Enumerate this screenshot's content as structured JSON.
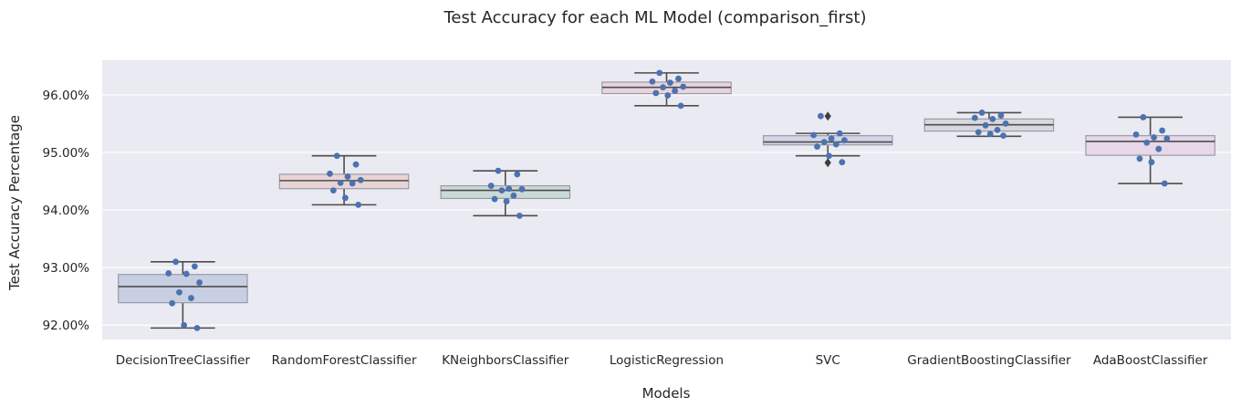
{
  "chart_data": {
    "type": "box",
    "title": "Test Accuracy for each ML Model (comparison_first)",
    "xlabel": "Models",
    "ylabel": "Test Accuracy Percentage",
    "ylim": [
      91.75,
      96.6
    ],
    "yticks": [
      92.0,
      93.0,
      94.0,
      95.0,
      96.0
    ],
    "ytick_labels": [
      "92.00%",
      "93.00%",
      "94.00%",
      "95.00%",
      "96.00%"
    ],
    "grid": true,
    "categories": [
      "DecisionTreeClassifier",
      "RandomForestClassifier",
      "KNeighborsClassifier",
      "LogisticRegression",
      "SVC",
      "GradientBoostingClassifier",
      "AdaBoostClassifier"
    ],
    "colors": {
      "background": "#eaeaf2",
      "grid": "#ffffff",
      "points": "#4c72b0",
      "box_edge": "#4d4d4d",
      "boxes": [
        "#c6cde0",
        "#e8d3d3",
        "#c9d9d4",
        "#e8d3dc",
        "#d2d3e6",
        "#d6d6dc",
        "#e6d6e8"
      ]
    },
    "boxes": [
      {
        "q1": 92.39,
        "median": 92.67,
        "q3": 92.88,
        "whisker_low": 91.95,
        "whisker_high": 93.1,
        "outliers": []
      },
      {
        "q1": 94.37,
        "median": 94.51,
        "q3": 94.62,
        "whisker_low": 94.09,
        "whisker_high": 94.94,
        "outliers": []
      },
      {
        "q1": 94.2,
        "median": 94.34,
        "q3": 94.42,
        "whisker_low": 93.9,
        "whisker_high": 94.68,
        "outliers": []
      },
      {
        "q1": 96.02,
        "median": 96.13,
        "q3": 96.22,
        "whisker_low": 95.81,
        "whisker_high": 96.38,
        "outliers": []
      },
      {
        "q1": 95.13,
        "median": 95.18,
        "q3": 95.29,
        "whisker_low": 94.94,
        "whisker_high": 95.33,
        "outliers": [
          95.63,
          94.82
        ]
      },
      {
        "q1": 95.37,
        "median": 95.48,
        "q3": 95.58,
        "whisker_low": 95.28,
        "whisker_high": 95.69,
        "outliers": []
      },
      {
        "q1": 94.95,
        "median": 95.19,
        "q3": 95.29,
        "whisker_low": 94.46,
        "whisker_high": 95.61,
        "outliers": []
      }
    ],
    "points": [
      [
        93.1,
        93.02,
        92.9,
        92.89,
        92.74,
        92.57,
        92.47,
        92.38,
        92.0,
        91.95
      ],
      [
        94.94,
        94.79,
        94.63,
        94.58,
        94.52,
        94.47,
        94.46,
        94.34,
        94.21,
        94.09
      ],
      [
        94.68,
        94.62,
        94.42,
        94.37,
        94.36,
        94.34,
        94.25,
        94.19,
        94.15,
        93.9
      ],
      [
        96.38,
        96.28,
        96.23,
        96.21,
        96.14,
        96.13,
        96.07,
        96.03,
        95.99,
        95.81
      ],
      [
        95.63,
        95.33,
        95.3,
        95.24,
        95.21,
        95.18,
        95.14,
        95.1,
        94.94,
        94.83
      ],
      [
        95.69,
        95.64,
        95.6,
        95.58,
        95.5,
        95.47,
        95.39,
        95.35,
        95.32,
        95.29
      ],
      [
        95.61,
        95.38,
        95.31,
        95.26,
        95.24,
        95.17,
        95.06,
        94.89,
        94.83,
        94.46
      ]
    ]
  }
}
